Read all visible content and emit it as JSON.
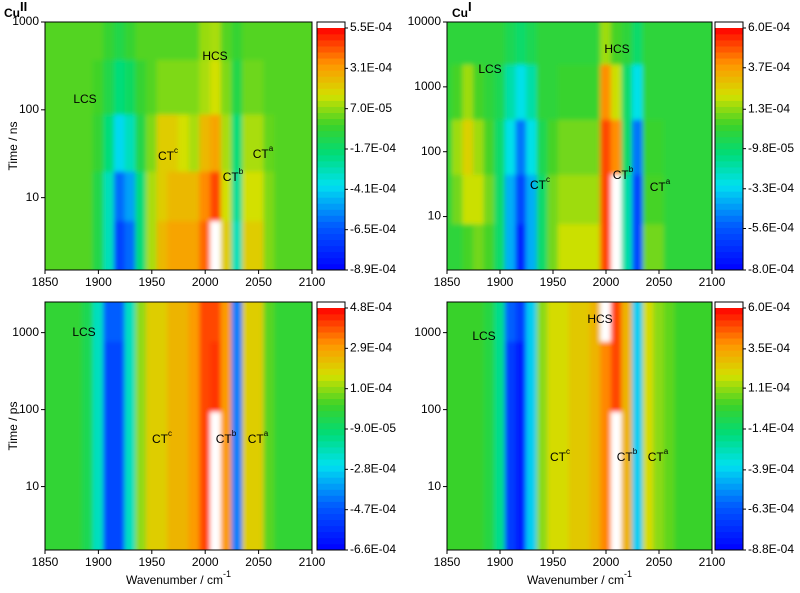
{
  "chart_data": [
    {
      "type": "heatmap",
      "title": {
        "text": "Cu",
        "sup": "II"
      },
      "ylabel": "Time / ns",
      "x": [
        1850,
        1860,
        1870,
        1880,
        1890,
        1900,
        1910,
        1920,
        1930,
        1940,
        1950,
        1960,
        1970,
        1980,
        1990,
        2000,
        2010,
        2020,
        2030,
        2040,
        2050,
        2060,
        2070,
        2080,
        2090,
        2100
      ],
      "y": [
        3,
        10,
        40,
        200,
        700
      ],
      "z": [
        [
          0,
          0,
          0,
          0,
          0,
          -0.0001,
          -0.0003,
          -0.0007,
          -0.0006,
          -0.0002,
          0.0001,
          0.00025,
          0.0003,
          0.0003,
          0.0003,
          0.0004,
          0.0006,
          0.0002,
          -0.0003,
          0.0002,
          0.0002,
          5e-05,
          0,
          0,
          0,
          0
        ],
        [
          0,
          0,
          0,
          0,
          0,
          -0.0001,
          -0.0003,
          -0.0006,
          -0.0005,
          -0.0002,
          0.0001,
          0.0002,
          0.00025,
          0.00025,
          0.00025,
          0.00035,
          0.00045,
          0.00015,
          -0.00025,
          0.00015,
          0.00015,
          5e-05,
          0,
          0,
          0,
          0
        ],
        [
          0,
          0,
          0,
          0,
          0,
          -5e-05,
          -0.0002,
          -0.0004,
          -0.0003,
          -0.0001,
          5e-05,
          0.0002,
          0.0002,
          0.00015,
          0.0001,
          0.00025,
          0.0003,
          0.0001,
          -0.0002,
          0.0001,
          0.0001,
          2e-05,
          0,
          0,
          0,
          0
        ],
        [
          0,
          0,
          0,
          0,
          0,
          -2e-05,
          -0.0001,
          -0.0002,
          -0.00015,
          -5e-05,
          0,
          5e-05,
          5e-05,
          5e-05,
          5e-05,
          0.0001,
          0.00015,
          5e-05,
          -0.0001,
          3e-05,
          3e-05,
          0,
          0,
          0,
          0,
          0
        ],
        [
          0,
          0,
          0,
          0,
          0,
          0,
          -5e-05,
          -0.0001,
          -5e-05,
          0,
          0,
          0,
          0,
          0,
          0,
          8e-05,
          0.0001,
          0,
          -5e-05,
          0,
          0,
          0,
          0,
          0,
          0,
          0
        ]
      ],
      "xlim": [
        1850,
        2100
      ],
      "xticks": [
        1850,
        1900,
        1950,
        2000,
        2050,
        2100
      ],
      "ylim": [
        1.5,
        1000
      ],
      "yticks": [
        10,
        100,
        1000
      ],
      "log_y": true,
      "clim": [
        -0.00089,
        0.00055
      ],
      "cticks": [
        {
          "value": 0.00055,
          "label": "5.5E-04"
        },
        {
          "value": 0.00031,
          "label": "3.1E-04"
        },
        {
          "value": 7e-05,
          "label": "7.0E-05"
        },
        {
          "value": -0.00017,
          "label": "-1.7E-04"
        },
        {
          "value": -0.00041,
          "label": "-4.1E-04"
        },
        {
          "value": -0.00065,
          "label": "-6.5E-04"
        },
        {
          "value": -0.00089,
          "label": "-8.9E-04"
        }
      ],
      "annotations": [
        {
          "text": "LCS"
        },
        {
          "text": "HCS"
        },
        {
          "text": "CT",
          "sup": "c"
        },
        {
          "text": "CT",
          "sup": "b"
        },
        {
          "text": "CT",
          "sup": "a"
        }
      ]
    },
    {
      "type": "heatmap",
      "title": {
        "text": "Cu",
        "sup": "I"
      },
      "x": [
        1850,
        1860,
        1870,
        1880,
        1890,
        1900,
        1910,
        1920,
        1930,
        1940,
        1950,
        1960,
        1970,
        1980,
        1990,
        2000,
        2010,
        2020,
        2030,
        2040,
        2050,
        2060,
        2070,
        2080,
        2090,
        2100
      ],
      "y": [
        3,
        20,
        100,
        1000,
        5000
      ],
      "z": [
        [
          0,
          0,
          5e-05,
          0.0001,
          5e-05,
          -0.0001,
          -0.0004,
          -0.0007,
          -0.0004,
          -0.0001,
          0.0001,
          0.0002,
          0.0002,
          0.0002,
          0.0002,
          0.0005,
          0.0007,
          -0.0002,
          -0.0006,
          0.0001,
          0.0001,
          0,
          0,
          0,
          0,
          0
        ],
        [
          0,
          0.0001,
          0.0002,
          0.0002,
          0.0001,
          -0.0001,
          -0.0004,
          -0.0006,
          -0.0004,
          -0.0001,
          0.0001,
          0.00015,
          0.00015,
          0.00015,
          0.00015,
          0.0005,
          0.0007,
          -0.0002,
          -0.0006,
          5e-05,
          5e-05,
          0,
          0,
          0,
          0,
          0
        ],
        [
          0,
          0.00015,
          0.00025,
          0.00015,
          5e-05,
          -0.0001,
          -0.0003,
          -0.0005,
          -0.0003,
          -5e-05,
          5e-05,
          0.0001,
          0.0001,
          0.0001,
          0.0001,
          0.0005,
          0.0004,
          -0.0001,
          -0.0005,
          3e-05,
          3e-05,
          0,
          0,
          0,
          0,
          0
        ],
        [
          0,
          5e-05,
          0.00015,
          5e-05,
          0,
          -5e-05,
          -0.0002,
          -0.0003,
          -0.0002,
          0,
          0,
          3e-05,
          3e-05,
          3e-05,
          3e-05,
          0.0004,
          0.0002,
          -0.0001,
          -0.0003,
          0,
          0,
          0,
          0,
          0,
          0,
          0
        ],
        [
          0,
          0,
          0,
          0,
          0,
          0,
          -5e-05,
          -0.0001,
          -5e-05,
          0,
          0,
          0,
          0,
          0,
          0,
          0.00015,
          5e-05,
          0,
          -0.0001,
          0,
          0,
          0,
          0,
          0,
          0,
          0
        ]
      ],
      "xlim": [
        1850,
        2100
      ],
      "xticks": [
        1850,
        1900,
        1950,
        2000,
        2050,
        2100
      ],
      "ylim": [
        1.5,
        10000
      ],
      "yticks": [
        10,
        100,
        1000,
        10000
      ],
      "log_y": true,
      "clim": [
        -0.0008,
        0.0006
      ],
      "cticks": [
        {
          "value": 0.0006,
          "label": "6.0E-04"
        },
        {
          "value": 0.00037,
          "label": "3.7E-04"
        },
        {
          "value": 0.00013,
          "label": "1.3E-04"
        },
        {
          "value": -9.8e-05,
          "label": "-9.8E-05"
        },
        {
          "value": -0.00033,
          "label": "-3.3E-04"
        },
        {
          "value": -0.00056,
          "label": "-5.6E-04"
        },
        {
          "value": -0.0008,
          "label": "-8.0E-04"
        }
      ],
      "annotations": [
        {
          "text": "LCS"
        },
        {
          "text": "HCS"
        },
        {
          "text": "CT",
          "sup": "c"
        },
        {
          "text": "CT",
          "sup": "b"
        },
        {
          "text": "CT",
          "sup": "a"
        }
      ]
    },
    {
      "type": "heatmap",
      "ylabel": "Time / ps",
      "xlabel": {
        "text": "Wavenumber / cm",
        "sup": "-1"
      },
      "x": [
        1850,
        1860,
        1870,
        1880,
        1890,
        1900,
        1910,
        1920,
        1930,
        1940,
        1950,
        1960,
        1970,
        1980,
        1990,
        2000,
        2010,
        2020,
        2030,
        2040,
        2050,
        2060,
        2070,
        2080,
        2090,
        2100
      ],
      "y": [
        3,
        30,
        300,
        2000
      ],
      "z": [
        [
          0,
          0,
          0,
          0,
          -5e-05,
          -0.0002,
          -0.0005,
          -0.0005,
          -0.0002,
          0.0001,
          0.0002,
          0.0002,
          0.00025,
          0.00025,
          0.0003,
          0.0004,
          0.0005,
          0.0003,
          -0.0004,
          0.0002,
          0.0002,
          5e-05,
          0,
          0,
          0,
          0
        ],
        [
          0,
          0,
          0,
          0,
          -5e-05,
          -0.0002,
          -0.0005,
          -0.0005,
          -0.0002,
          0.0001,
          0.0002,
          0.0002,
          0.00025,
          0.00025,
          0.0003,
          0.0004,
          0.0005,
          0.0003,
          -0.0004,
          0.0002,
          0.0002,
          5e-05,
          0,
          0,
          0,
          0
        ],
        [
          0,
          0,
          0,
          0,
          -5e-05,
          -0.0002,
          -0.0005,
          -0.0005,
          -0.0002,
          0.0001,
          0.0002,
          0.0002,
          0.00025,
          0.00025,
          0.0003,
          0.0004,
          0.00042,
          0.0003,
          -0.0004,
          0.0002,
          0.0002,
          5e-05,
          0,
          0,
          0,
          0
        ],
        [
          0,
          0,
          0,
          0,
          -5e-05,
          -0.0002,
          -0.00045,
          -0.00045,
          -0.0002,
          0.0001,
          0.0002,
          0.0002,
          0.00025,
          0.00025,
          0.0003,
          0.0004,
          0.0004,
          0.0003,
          -0.0004,
          0.0002,
          0.0002,
          5e-05,
          0,
          0,
          0,
          0
        ]
      ],
      "xlim": [
        1850,
        2100
      ],
      "xticks": [
        1850,
        1900,
        1950,
        2000,
        2050,
        2100
      ],
      "ylim": [
        1.5,
        2500
      ],
      "yticks": [
        10,
        100,
        1000
      ],
      "log_y": true,
      "clim": [
        -0.00066,
        0.00048
      ],
      "cticks": [
        {
          "value": 0.00048,
          "label": "4.8E-04"
        },
        {
          "value": 0.00029,
          "label": "2.9E-04"
        },
        {
          "value": 0.0001,
          "label": "1.0E-04"
        },
        {
          "value": -9e-05,
          "label": "-9.0E-05"
        },
        {
          "value": -0.00028,
          "label": "-2.8E-04"
        },
        {
          "value": -0.00047,
          "label": "-4.7E-04"
        },
        {
          "value": -0.00066,
          "label": "-6.6E-04"
        }
      ],
      "annotations": [
        {
          "text": "LCS"
        },
        {
          "text": "CT",
          "sup": "c"
        },
        {
          "text": "CT",
          "sup": "b"
        },
        {
          "text": "CT",
          "sup": "a"
        }
      ]
    },
    {
      "type": "heatmap",
      "xlabel": {
        "text": "Wavenumber / cm",
        "sup": "-1"
      },
      "x": [
        1850,
        1860,
        1870,
        1880,
        1890,
        1900,
        1910,
        1920,
        1930,
        1940,
        1950,
        1960,
        1970,
        1980,
        1990,
        2000,
        2010,
        2020,
        2030,
        2040,
        2050,
        2060,
        2070,
        2080,
        2090,
        2100
      ],
      "y": [
        3,
        30,
        300,
        2000
      ],
      "z": [
        [
          0,
          0,
          0,
          0,
          -5e-05,
          -0.0002,
          -0.0007,
          -0.0008,
          -0.0004,
          0.0001,
          0.0002,
          0.0002,
          0.00025,
          0.00025,
          0.0003,
          0.0004,
          0.00065,
          0.0003,
          -0.0004,
          0.0002,
          0.0001,
          5e-05,
          0,
          0,
          0,
          0
        ],
        [
          0,
          0,
          0,
          0,
          -5e-05,
          -0.0002,
          -0.0007,
          -0.0008,
          -0.0004,
          0.0001,
          0.0002,
          0.0002,
          0.00025,
          0.00025,
          0.0003,
          0.0004,
          0.00065,
          0.0003,
          -0.0004,
          0.0002,
          0.0001,
          5e-05,
          0,
          0,
          0,
          0
        ],
        [
          0,
          0,
          0,
          0,
          -5e-05,
          -0.0002,
          -0.0007,
          -0.0008,
          -0.0004,
          0.0001,
          0.0002,
          0.0002,
          0.00025,
          0.00025,
          0.0003,
          0.0004,
          0.0005,
          0.0003,
          -0.0004,
          0.0002,
          0.0001,
          5e-05,
          0,
          0,
          0,
          0
        ],
        [
          0,
          0,
          0,
          0,
          -5e-05,
          -0.0002,
          -0.0006,
          -0.0007,
          -0.0004,
          0.0001,
          0.0002,
          0.0002,
          0.00025,
          0.00025,
          0.0003,
          0.00062,
          0.0005,
          0.0003,
          -0.0004,
          0.0002,
          0.0001,
          5e-05,
          0,
          0,
          0,
          0
        ]
      ],
      "xlim": [
        1850,
        2100
      ],
      "xticks": [
        1850,
        1900,
        1950,
        2000,
        2050,
        2100
      ],
      "ylim": [
        1.5,
        2500
      ],
      "yticks": [
        10,
        100,
        1000
      ],
      "log_y": true,
      "clim": [
        -0.00088,
        0.0006
      ],
      "cticks": [
        {
          "value": 0.0006,
          "label": "6.0E-04"
        },
        {
          "value": 0.00035,
          "label": "3.5E-04"
        },
        {
          "value": 0.00011,
          "label": "1.1E-04"
        },
        {
          "value": -0.00014,
          "label": "-1.4E-04"
        },
        {
          "value": -0.00039,
          "label": "-3.9E-04"
        },
        {
          "value": -0.00063,
          "label": "-6.3E-04"
        },
        {
          "value": -0.00088,
          "label": "-8.8E-04"
        }
      ],
      "annotations": [
        {
          "text": "LCS"
        },
        {
          "text": "HCS"
        },
        {
          "text": "CT",
          "sup": "c"
        },
        {
          "text": "CT",
          "sup": "b"
        },
        {
          "text": "CT",
          "sup": "a"
        }
      ]
    }
  ]
}
